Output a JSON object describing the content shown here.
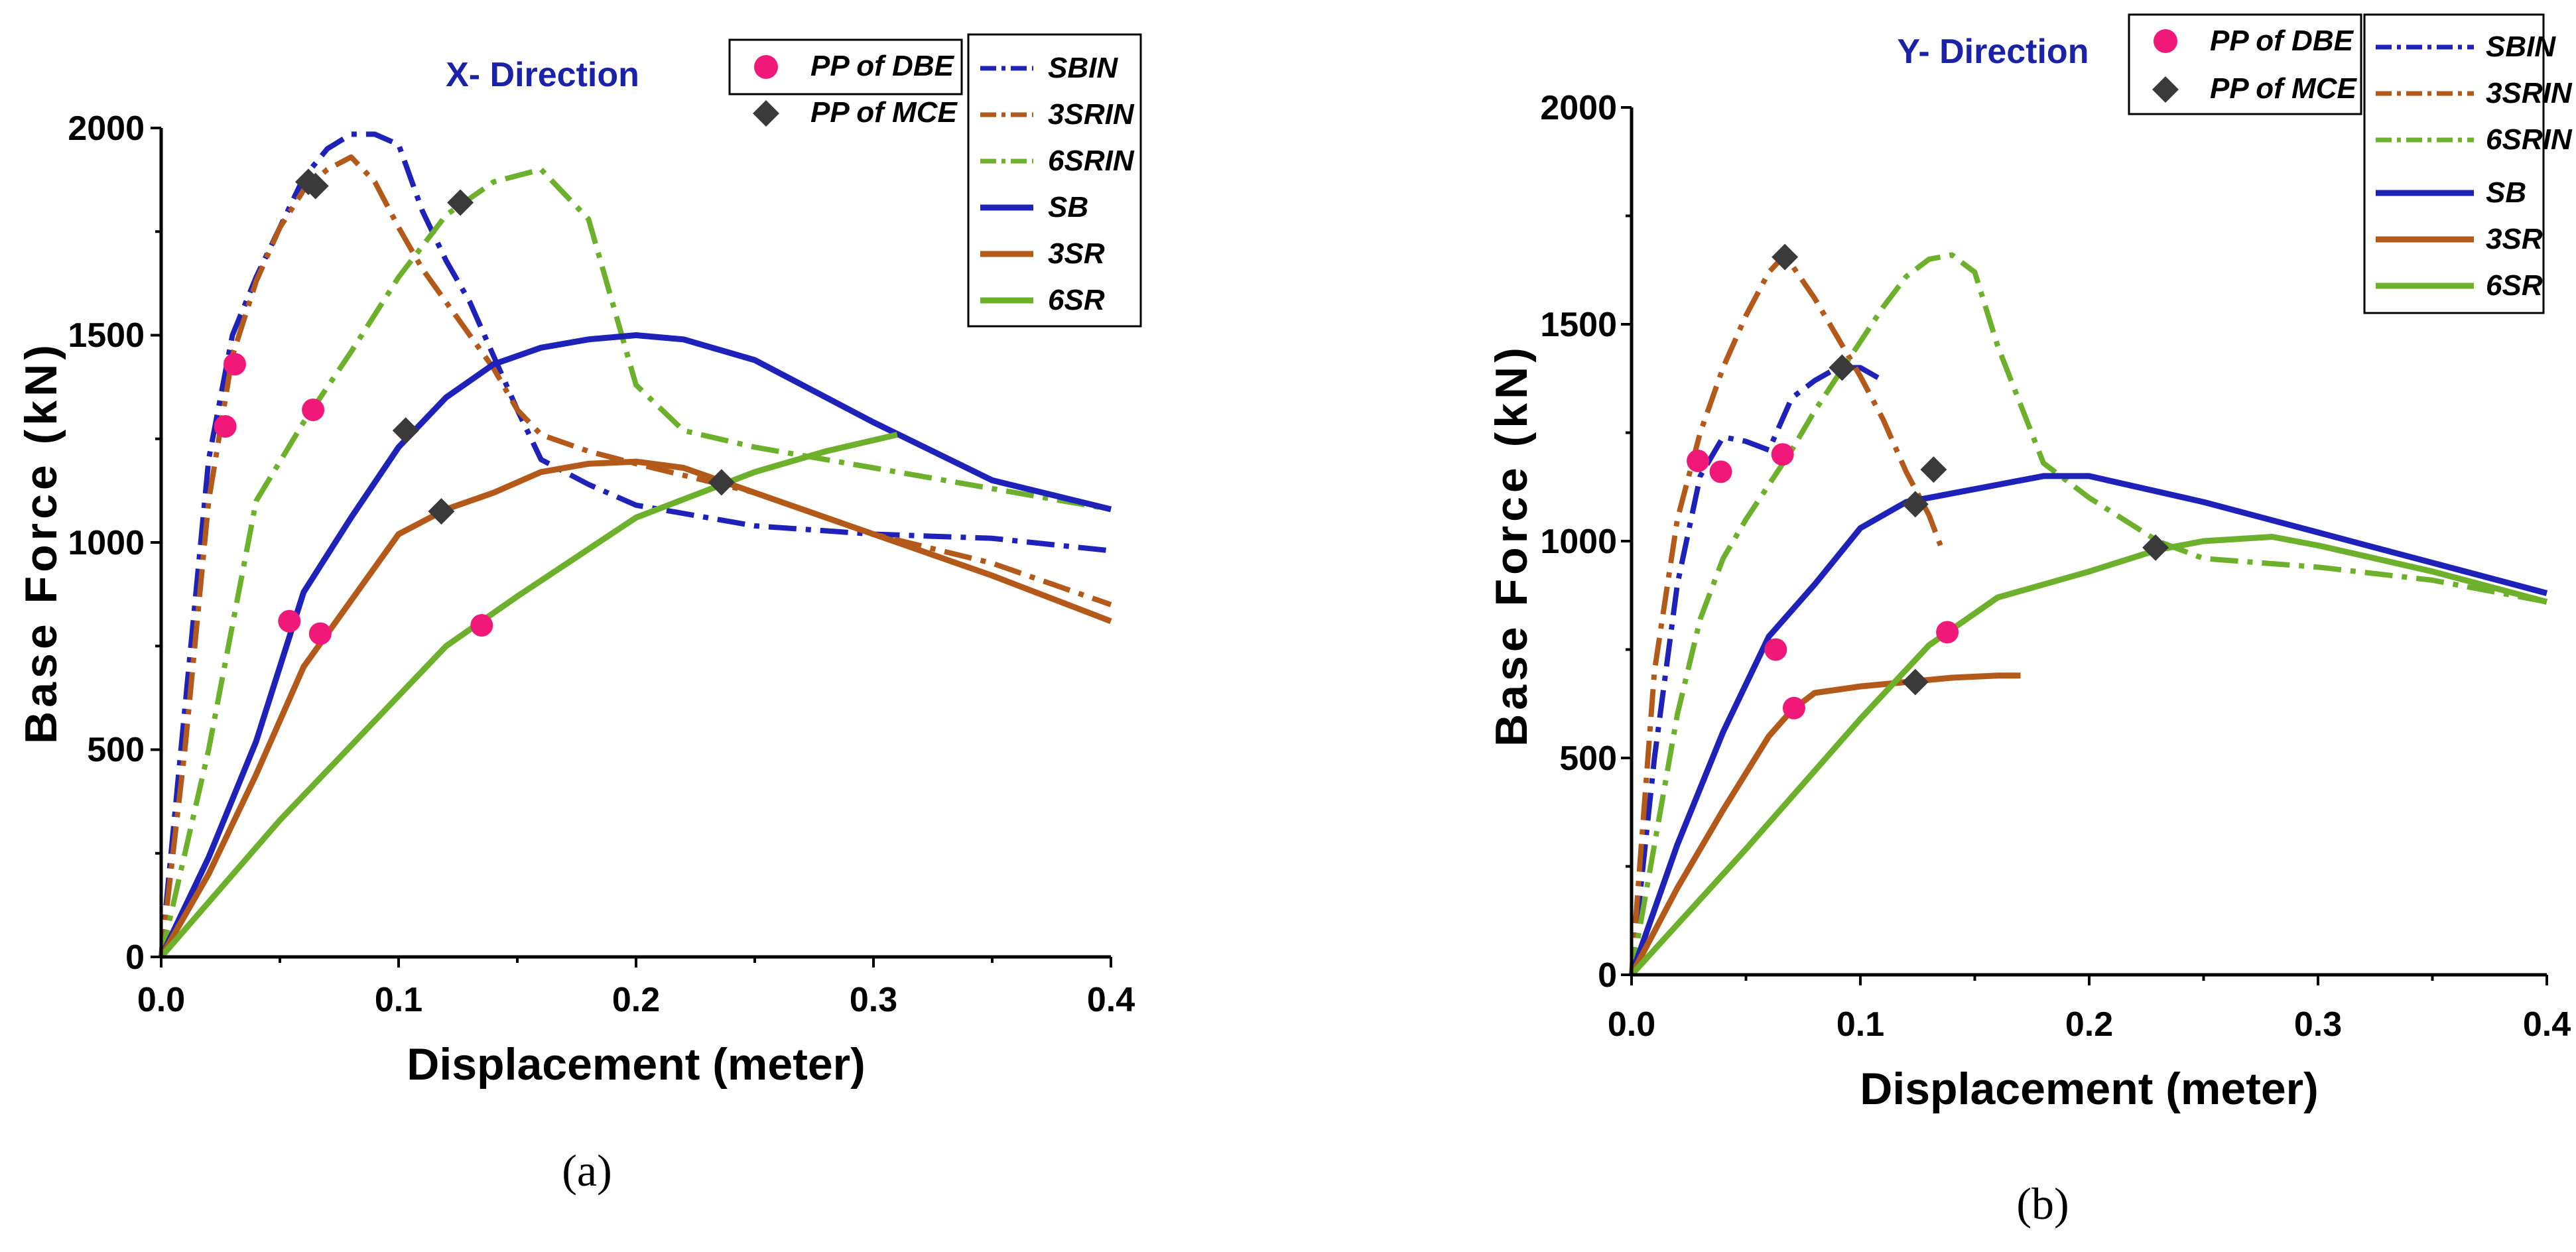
{
  "colors": {
    "SB": "#1e22b8",
    "3SR": "#b35a1a",
    "6SR": "#6cb02c",
    "DBE": "#f0197a",
    "MCE": "#3a3a3a",
    "title": "#1a22a8"
  },
  "chart_data": [
    {
      "type": "line",
      "panel": "a",
      "title": "X- Direction",
      "caption": "(a)",
      "xlabel": "Displacement (meter)",
      "ylabel": "Base Force (kN)",
      "xlim": [
        0,
        0.4
      ],
      "ylim": [
        0,
        2000
      ],
      "xticks": [
        "0.0",
        "0.1",
        "0.2",
        "0.3",
        "0.4"
      ],
      "yticks": [
        "0",
        "500",
        "1000",
        "1500",
        "2000"
      ],
      "legend_markers": [
        {
          "name": "PP of DBE",
          "marker": "circle",
          "color": "#f0197a"
        },
        {
          "name": "PP of MCE",
          "marker": "diamond",
          "color": "#3a3a3a"
        }
      ],
      "legend_lines": [
        "SBIN",
        "3SRIN",
        "6SRIN",
        "SB",
        "3SR",
        "6SR"
      ],
      "series": [
        {
          "name": "SBIN",
          "color": "#1e22b8",
          "style": "dashdot",
          "x": [
            0,
            0.01,
            0.02,
            0.03,
            0.04,
            0.05,
            0.06,
            0.07,
            0.08,
            0.09,
            0.1,
            0.11,
            0.12,
            0.13,
            0.14,
            0.15,
            0.16,
            0.18,
            0.2,
            0.25,
            0.3,
            0.35,
            0.4
          ],
          "y": [
            0,
            600,
            1200,
            1500,
            1640,
            1760,
            1880,
            1950,
            1985,
            1985,
            1960,
            1800,
            1680,
            1580,
            1450,
            1320,
            1200,
            1140,
            1090,
            1040,
            1020,
            1010,
            980
          ]
        },
        {
          "name": "3SRIN",
          "color": "#b35a1a",
          "style": "dashdot",
          "x": [
            0,
            0.01,
            0.02,
            0.03,
            0.04,
            0.05,
            0.06,
            0.07,
            0.08,
            0.09,
            0.1,
            0.11,
            0.12,
            0.13,
            0.14,
            0.15,
            0.16,
            0.18,
            0.2,
            0.25,
            0.3,
            0.35,
            0.4
          ],
          "y": [
            0,
            500,
            1100,
            1450,
            1630,
            1760,
            1850,
            1900,
            1930,
            1870,
            1760,
            1660,
            1580,
            1500,
            1420,
            1320,
            1260,
            1220,
            1190,
            1120,
            1020,
            950,
            850
          ]
        },
        {
          "name": "6SRIN",
          "color": "#6cb02c",
          "style": "dashdot",
          "x": [
            0,
            0.02,
            0.04,
            0.06,
            0.08,
            0.1,
            0.12,
            0.14,
            0.16,
            0.18,
            0.19,
            0.2,
            0.22,
            0.25,
            0.3,
            0.35,
            0.4
          ],
          "y": [
            0,
            500,
            1100,
            1290,
            1460,
            1640,
            1790,
            1870,
            1900,
            1780,
            1580,
            1380,
            1270,
            1230,
            1180,
            1130,
            1080
          ]
        },
        {
          "name": "SB",
          "color": "#1e22b8",
          "style": "solid",
          "x": [
            0,
            0.02,
            0.04,
            0.06,
            0.08,
            0.1,
            0.12,
            0.14,
            0.16,
            0.18,
            0.2,
            0.22,
            0.25,
            0.3,
            0.35,
            0.4
          ],
          "y": [
            0,
            240,
            520,
            880,
            1060,
            1230,
            1350,
            1430,
            1470,
            1490,
            1500,
            1490,
            1440,
            1290,
            1150,
            1080
          ]
        },
        {
          "name": "3SR",
          "color": "#b35a1a",
          "style": "solid",
          "x": [
            0,
            0.02,
            0.04,
            0.06,
            0.08,
            0.1,
            0.12,
            0.14,
            0.16,
            0.18,
            0.2,
            0.22,
            0.25,
            0.3,
            0.35,
            0.4
          ],
          "y": [
            0,
            200,
            440,
            700,
            860,
            1020,
            1080,
            1120,
            1170,
            1190,
            1195,
            1180,
            1120,
            1020,
            920,
            810
          ]
        },
        {
          "name": "6SR",
          "color": "#6cb02c",
          "style": "solid",
          "x": [
            0,
            0.05,
            0.1,
            0.12,
            0.15,
            0.2,
            0.25,
            0.28,
            0.31
          ],
          "y": [
            0,
            330,
            630,
            750,
            870,
            1060,
            1170,
            1220,
            1260
          ]
        }
      ],
      "points": {
        "PP of DBE": [
          {
            "x": 0.027,
            "y": 1280
          },
          {
            "x": 0.031,
            "y": 1430
          },
          {
            "x": 0.054,
            "y": 810
          },
          {
            "x": 0.064,
            "y": 1320
          },
          {
            "x": 0.067,
            "y": 780
          },
          {
            "x": 0.135,
            "y": 800
          }
        ],
        "PP of MCE": [
          {
            "x": 0.062,
            "y": 1870
          },
          {
            "x": 0.065,
            "y": 1860
          },
          {
            "x": 0.103,
            "y": 1270
          },
          {
            "x": 0.118,
            "y": 1075
          },
          {
            "x": 0.126,
            "y": 1820
          },
          {
            "x": 0.236,
            "y": 1145
          }
        ]
      }
    },
    {
      "type": "line",
      "panel": "b",
      "title": "Y- Direction",
      "caption": "(b)",
      "xlabel": "Displacement (meter)",
      "ylabel": "Base Force (kN)",
      "xlim": [
        0,
        0.4
      ],
      "ylim": [
        0,
        2000
      ],
      "xticks": [
        "0.0",
        "0.1",
        "0.2",
        "0.3",
        "0.4"
      ],
      "yticks": [
        "0",
        "500",
        "1000",
        "1500",
        "2000"
      ],
      "legend_markers": [
        {
          "name": "PP of DBE",
          "marker": "circle",
          "color": "#f0197a"
        },
        {
          "name": "PP of MCE",
          "marker": "diamond",
          "color": "#3a3a3a"
        }
      ],
      "legend_lines": [
        "SBIN",
        "3SRIN",
        "6SRIN",
        "SB",
        "3SR",
        "6SR"
      ],
      "series": [
        {
          "name": "SBIN",
          "color": "#1e22b8",
          "style": "dashdot",
          "x": [
            0,
            0.01,
            0.02,
            0.03,
            0.04,
            0.05,
            0.06,
            0.07,
            0.08,
            0.09,
            0.1,
            0.11
          ],
          "y": [
            0,
            500,
            900,
            1150,
            1240,
            1230,
            1210,
            1330,
            1370,
            1400,
            1400,
            1370
          ]
        },
        {
          "name": "3SRIN",
          "color": "#b35a1a",
          "style": "dashdot",
          "x": [
            0,
            0.01,
            0.02,
            0.03,
            0.04,
            0.05,
            0.06,
            0.067,
            0.08,
            0.09,
            0.1,
            0.11,
            0.12,
            0.13,
            0.135
          ],
          "y": [
            0,
            700,
            1050,
            1250,
            1400,
            1520,
            1620,
            1660,
            1560,
            1470,
            1380,
            1280,
            1160,
            1060,
            990
          ]
        },
        {
          "name": "6SRIN",
          "color": "#6cb02c",
          "style": "dashdot",
          "x": [
            0,
            0.01,
            0.02,
            0.03,
            0.04,
            0.05,
            0.06,
            0.07,
            0.08,
            0.09,
            0.1,
            0.11,
            0.12,
            0.13,
            0.14,
            0.15,
            0.16,
            0.18,
            0.2,
            0.23,
            0.25,
            0.3,
            0.35,
            0.4
          ],
          "y": [
            0,
            300,
            600,
            820,
            960,
            1050,
            1130,
            1210,
            1300,
            1380,
            1460,
            1540,
            1610,
            1650,
            1660,
            1620,
            1450,
            1180,
            1100,
            1000,
            960,
            940,
            910,
            860
          ]
        },
        {
          "name": "SB",
          "color": "#1e22b8",
          "style": "solid",
          "x": [
            0,
            0.02,
            0.04,
            0.06,
            0.08,
            0.1,
            0.12,
            0.14,
            0.16,
            0.18,
            0.2,
            0.25,
            0.3,
            0.35,
            0.4
          ],
          "y": [
            0,
            300,
            560,
            780,
            900,
            1030,
            1090,
            1110,
            1130,
            1150,
            1150,
            1090,
            1020,
            950,
            880
          ]
        },
        {
          "name": "3SR",
          "color": "#b35a1a",
          "style": "solid",
          "x": [
            0,
            0.02,
            0.04,
            0.06,
            0.07,
            0.08,
            0.1,
            0.12,
            0.14,
            0.16,
            0.17
          ],
          "y": [
            0,
            200,
            380,
            550,
            610,
            650,
            665,
            675,
            685,
            690,
            690
          ]
        },
        {
          "name": "6SR",
          "color": "#6cb02c",
          "style": "solid",
          "x": [
            0,
            0.05,
            0.1,
            0.13,
            0.16,
            0.2,
            0.23,
            0.25,
            0.28,
            0.3,
            0.35,
            0.4
          ],
          "y": [
            0,
            290,
            590,
            760,
            870,
            930,
            980,
            1000,
            1010,
            990,
            930,
            860
          ]
        }
      ],
      "points": {
        "PP of DBE": [
          {
            "x": 0.029,
            "y": 1185
          },
          {
            "x": 0.039,
            "y": 1160
          },
          {
            "x": 0.066,
            "y": 1200
          },
          {
            "x": 0.063,
            "y": 750
          },
          {
            "x": 0.071,
            "y": 615
          },
          {
            "x": 0.138,
            "y": 790
          }
        ],
        "PP of MCE": [
          {
            "x": 0.067,
            "y": 1655
          },
          {
            "x": 0.092,
            "y": 1400
          },
          {
            "x": 0.124,
            "y": 1085
          },
          {
            "x": 0.132,
            "y": 1165
          },
          {
            "x": 0.124,
            "y": 675
          },
          {
            "x": 0.229,
            "y": 985
          }
        ]
      }
    }
  ]
}
